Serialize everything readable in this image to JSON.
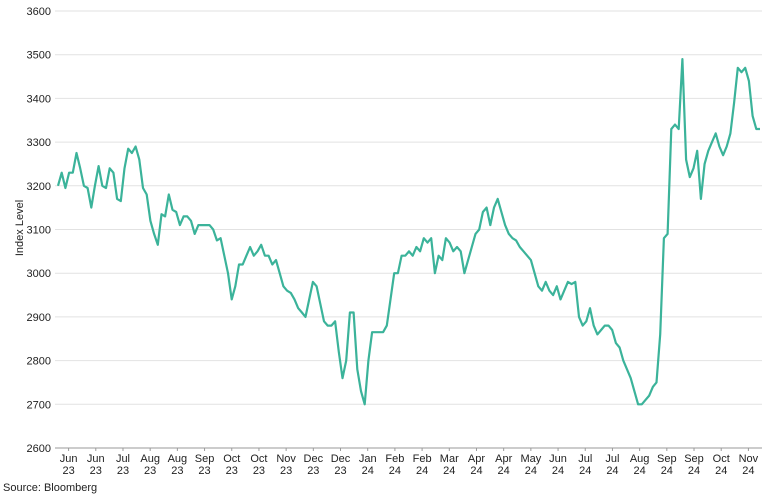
{
  "chart_data": {
    "type": "line",
    "ylabel": "Index Level",
    "ylim": [
      2600,
      3600
    ],
    "yticks": [
      2600,
      2700,
      2800,
      2900,
      3000,
      3100,
      3200,
      3300,
      3400,
      3500,
      3600
    ],
    "x_tick_labels": [
      [
        "Jun",
        "23"
      ],
      [
        "Jun",
        "23"
      ],
      [
        "Jul",
        "23"
      ],
      [
        "Aug",
        "23"
      ],
      [
        "Aug",
        "23"
      ],
      [
        "Sep",
        "23"
      ],
      [
        "Oct",
        "23"
      ],
      [
        "Oct",
        "23"
      ],
      [
        "Nov",
        "23"
      ],
      [
        "Dec",
        "23"
      ],
      [
        "Dec",
        "23"
      ],
      [
        "Jan",
        "24"
      ],
      [
        "Feb",
        "24"
      ],
      [
        "Feb",
        "24"
      ],
      [
        "Mar",
        "24"
      ],
      [
        "Apr",
        "24"
      ],
      [
        "Apr",
        "24"
      ],
      [
        "May",
        "24"
      ],
      [
        "Jun",
        "24"
      ],
      [
        "Jul",
        "24"
      ],
      [
        "Jul",
        "24"
      ],
      [
        "Aug",
        "24"
      ],
      [
        "Sep",
        "24"
      ],
      [
        "Sep",
        "24"
      ],
      [
        "Oct",
        "24"
      ],
      [
        "Nov",
        "24"
      ]
    ],
    "grid": true,
    "line_color": "#3bb39a",
    "series": [
      {
        "values": [
          3200,
          3230,
          3195,
          3230,
          3230,
          3275,
          3240,
          3200,
          3195,
          3150,
          3200,
          3245,
          3200,
          3195,
          3240,
          3230,
          3170,
          3165,
          3240,
          3285,
          3275,
          3290,
          3260,
          3195,
          3180,
          3120,
          3090,
          3065,
          3135,
          3130,
          3180,
          3145,
          3140,
          3110,
          3130,
          3130,
          3120,
          3090,
          3110,
          3110,
          3110,
          3110,
          3100,
          3075,
          3080,
          3040,
          3000,
          2940,
          2970,
          3020,
          3020,
          3040,
          3060,
          3040,
          3050,
          3065,
          3040,
          3040,
          3020,
          3030,
          3000,
          2970,
          2960,
          2955,
          2940,
          2920,
          2910,
          2900,
          2940,
          2980,
          2970,
          2930,
          2890,
          2880,
          2880,
          2890,
          2820,
          2760,
          2800,
          2910,
          2910,
          2780,
          2730,
          2700,
          2800,
          2865,
          2865,
          2865,
          2865,
          2880,
          2940,
          3000,
          3000,
          3040,
          3040,
          3050,
          3040,
          3060,
          3050,
          3080,
          3070,
          3080,
          3000,
          3040,
          3030,
          3080,
          3070,
          3050,
          3060,
          3050,
          3000,
          3030,
          3060,
          3090,
          3100,
          3140,
          3150,
          3110,
          3150,
          3170,
          3140,
          3110,
          3090,
          3080,
          3075,
          3060,
          3050,
          3040,
          3030,
          3000,
          2970,
          2960,
          2980,
          2960,
          2950,
          2970,
          2940,
          2960,
          2980,
          2975,
          2980,
          2900,
          2880,
          2890,
          2920,
          2880,
          2860,
          2870,
          2880,
          2880,
          2870,
          2840,
          2830,
          2800,
          2780,
          2760,
          2730,
          2700,
          2700,
          2710,
          2720,
          2740,
          2750,
          2860,
          3080,
          3090,
          3330,
          3340,
          3330,
          3490,
          3260,
          3220,
          3240,
          3280,
          3170,
          3250,
          3280,
          3300,
          3320,
          3290,
          3270,
          3290,
          3320,
          3390,
          3470,
          3460,
          3470,
          3440,
          3360,
          3330,
          3330
        ]
      }
    ]
  },
  "footer": {
    "source": "Source: Bloomberg"
  }
}
